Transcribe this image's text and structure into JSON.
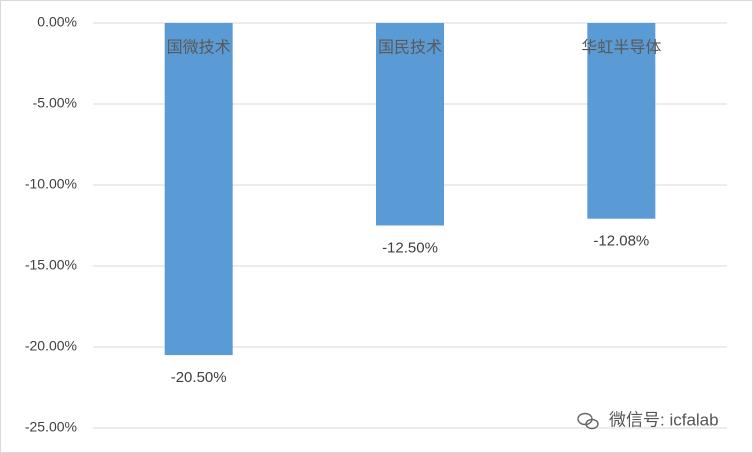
{
  "chart_data": {
    "type": "bar",
    "categories": [
      "国微技术",
      "国民技术",
      "华虹半导体"
    ],
    "values": [
      -20.5,
      -12.5,
      -12.08
    ],
    "value_labels": [
      "-20.50%",
      "-12.50%",
      "-12.08%"
    ],
    "color": "#5b9bd5",
    "ylim": [
      -25,
      0
    ],
    "yticks": [
      {
        "value": 0,
        "label": "0.00%"
      },
      {
        "value": -5,
        "label": "-5.00%"
      },
      {
        "value": -10,
        "label": "-10.00%"
      },
      {
        "value": -15,
        "label": "-15.00%"
      },
      {
        "value": -20,
        "label": "-20.00%"
      },
      {
        "value": -25,
        "label": "-25.00%"
      }
    ],
    "grid": true,
    "watermark": "微信号: icfalab"
  }
}
